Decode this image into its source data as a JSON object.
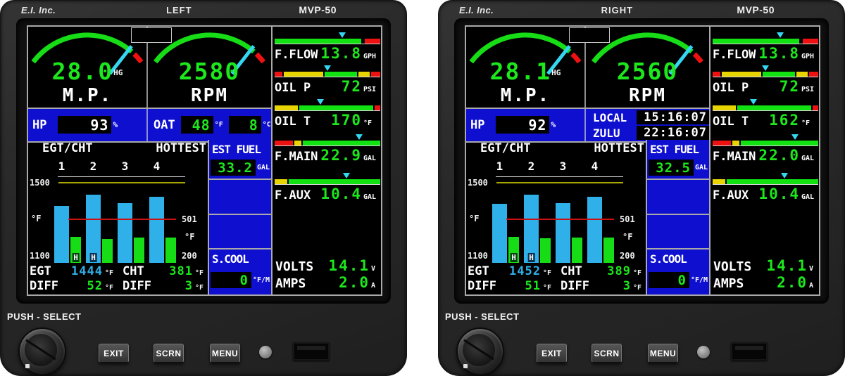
{
  "colors": {
    "green": "#1ce81c",
    "bar_green": "#12e112",
    "bar_yellow": "#e8d400",
    "bar_red": "#ee1111",
    "egt_blue": "#2fb0e8",
    "cht_green": "#16dd16",
    "pointer_cyan": "#35d6f2",
    "panel_blue": "#0f0fd0"
  },
  "units": [
    {
      "bezel": {
        "brand": "E.I. Inc.",
        "position": "LEFT",
        "model": "MVP-50"
      },
      "push_select": "PUSH - SELECT",
      "buttons": [
        "EXIT",
        "SCRN",
        "MENU"
      ],
      "gauges": {
        "mp": {
          "value": "28.0",
          "unit": "HG",
          "label": "M.P."
        },
        "rpm": {
          "value": "2580",
          "label": "RPM"
        }
      },
      "hp": {
        "label": "HP",
        "value": "93",
        "unit": "%"
      },
      "oat": {
        "label": "OAT",
        "f_value": "48",
        "f_unit": "°F",
        "c_value": "8",
        "c_unit": "°C"
      },
      "bars": {
        "f_flow": {
          "label": "F.FLOW",
          "value": "13.8",
          "unit": "GPH",
          "pointer": 64,
          "segments": [
            {
              "color": "#12e112",
              "from": 0,
              "to": 82
            },
            {
              "color": "#ee1111",
              "from": 85.5,
              "to": 100
            }
          ]
        },
        "oil_p": {
          "label": "OIL P",
          "value": "72",
          "unit": "PSI",
          "pointer": 50,
          "segments": [
            {
              "color": "#ee1111",
              "from": 0,
              "to": 7
            },
            {
              "color": "#e8d400",
              "from": 8.5,
              "to": 46
            },
            {
              "color": "#12e112",
              "from": 47.5,
              "to": 78
            },
            {
              "color": "#e8d400",
              "from": 79.5,
              "to": 90
            },
            {
              "color": "#ee1111",
              "from": 91.5,
              "to": 100
            }
          ]
        },
        "oil_t": {
          "label": "OIL T",
          "value": "170",
          "unit": "°F",
          "pointer": 43,
          "segments": [
            {
              "color": "#e8d400",
              "from": 0,
              "to": 22
            },
            {
              "color": "#12e112",
              "from": 23.5,
              "to": 93
            },
            {
              "color": "#ee1111",
              "from": 94.5,
              "to": 100
            }
          ]
        },
        "f_main": {
          "label": "F.MAIN",
          "value": "22.9",
          "unit": "GAL",
          "pointer": 80,
          "segments": [
            {
              "color": "#ee1111",
              "from": 0,
              "to": 17
            },
            {
              "color": "#e8d400",
              "from": 18.5,
              "to": 25
            },
            {
              "color": "#12e112",
              "from": 26.5,
              "to": 100
            }
          ]
        },
        "f_aux": {
          "label": "F.AUX",
          "value": "10.4",
          "unit": "GAL",
          "pointer": 68,
          "segments": [
            {
              "color": "#e8d400",
              "from": 0,
              "to": 12
            },
            {
              "color": "#12e112",
              "from": 13.5,
              "to": 100
            }
          ]
        }
      },
      "est_fuel": {
        "label": "EST FUEL",
        "value": "33.2",
        "unit": "GAL"
      },
      "s_cool": {
        "label": "S.COOL",
        "value": "0",
        "unit": "°F/M"
      },
      "volts": {
        "label": "VOLTS",
        "value": "14.1",
        "unit": "V"
      },
      "amps": {
        "label": "AMPS",
        "value": "2.0",
        "unit": "A"
      },
      "egt_cht": {
        "title": "EGT/CHT",
        "hottest_label": "HOTTEST",
        "cylinders": [
          "1",
          "2",
          "3",
          "4"
        ],
        "left_axis": {
          "top": "1500",
          "unit": "°F",
          "bottom": "1100"
        },
        "right_axis": {
          "redline": "501",
          "unit": "°F",
          "bottom": "200"
        },
        "egt_bars_pct": [
          72,
          86,
          75,
          83
        ],
        "cht_bars_pct": [
          33,
          30,
          32,
          32
        ],
        "egt_hottest_cyl": 2,
        "cht_hottest_cyl": 1,
        "hot_marker": "H",
        "redline_pct": 56,
        "readouts": {
          "egt_label": "EGT",
          "egt_value": "1444",
          "egt_unit": "°F",
          "cht_label": "CHT",
          "cht_value": "381",
          "cht_unit": "°F",
          "diff_label": "DIFF",
          "egt_diff": "52",
          "cht_diff": "3",
          "diff_unit": "°F"
        }
      }
    },
    {
      "bezel": {
        "brand": "E.I. Inc.",
        "position": "RIGHT",
        "model": "MVP-50"
      },
      "push_select": "PUSH - SELECT",
      "buttons": [
        "EXIT",
        "SCRN",
        "MENU"
      ],
      "gauges": {
        "mp": {
          "value": "28.1",
          "unit": "HG",
          "label": "M.P."
        },
        "rpm": {
          "value": "2560",
          "label": "RPM"
        }
      },
      "hp": {
        "label": "HP",
        "value": "92",
        "unit": "%"
      },
      "clock": {
        "local_label": "LOCAL",
        "local_value": "15:16:07",
        "zulu_label": "ZULU",
        "zulu_value": "22:16:07"
      },
      "bars": {
        "f_flow": {
          "label": "F.FLOW",
          "value": "13.8",
          "unit": "GPH",
          "pointer": 64,
          "segments": [
            {
              "color": "#12e112",
              "from": 0,
              "to": 82
            },
            {
              "color": "#ee1111",
              "from": 85.5,
              "to": 100
            }
          ]
        },
        "oil_p": {
          "label": "OIL P",
          "value": "72",
          "unit": "PSI",
          "pointer": 50,
          "segments": [
            {
              "color": "#ee1111",
              "from": 0,
              "to": 7
            },
            {
              "color": "#e8d400",
              "from": 8.5,
              "to": 46
            },
            {
              "color": "#12e112",
              "from": 47.5,
              "to": 78
            },
            {
              "color": "#e8d400",
              "from": 79.5,
              "to": 90
            },
            {
              "color": "#ee1111",
              "from": 91.5,
              "to": 100
            }
          ]
        },
        "oil_t": {
          "label": "OIL T",
          "value": "162",
          "unit": "°F",
          "pointer": 39,
          "segments": [
            {
              "color": "#e8d400",
              "from": 0,
              "to": 22
            },
            {
              "color": "#12e112",
              "from": 23.5,
              "to": 93
            },
            {
              "color": "#ee1111",
              "from": 94.5,
              "to": 100
            }
          ]
        },
        "f_main": {
          "label": "F.MAIN",
          "value": "22.0",
          "unit": "GAL",
          "pointer": 78,
          "segments": [
            {
              "color": "#ee1111",
              "from": 0,
              "to": 17
            },
            {
              "color": "#e8d400",
              "from": 18.5,
              "to": 25
            },
            {
              "color": "#12e112",
              "from": 26.5,
              "to": 100
            }
          ]
        },
        "f_aux": {
          "label": "F.AUX",
          "value": "10.4",
          "unit": "GAL",
          "pointer": 68,
          "segments": [
            {
              "color": "#e8d400",
              "from": 0,
              "to": 12
            },
            {
              "color": "#12e112",
              "from": 13.5,
              "to": 100
            }
          ]
        }
      },
      "est_fuel": {
        "label": "EST FUEL",
        "value": "32.5",
        "unit": "GAL"
      },
      "s_cool": {
        "label": "S.COOL",
        "value": "0",
        "unit": "°F/M"
      },
      "volts": {
        "label": "VOLTS",
        "value": "14.1",
        "unit": "V"
      },
      "amps": {
        "label": "AMPS",
        "value": "2.0",
        "unit": "A"
      },
      "egt_cht": {
        "title": "EGT/CHT",
        "hottest_label": "HOTTEST",
        "cylinders": [
          "1",
          "2",
          "3",
          "4"
        ],
        "left_axis": {
          "top": "1500",
          "unit": "°F",
          "bottom": "1100"
        },
        "right_axis": {
          "redline": "501",
          "unit": "°F",
          "bottom": "200"
        },
        "egt_bars_pct": [
          74,
          86,
          75,
          83
        ],
        "cht_bars_pct": [
          33,
          31,
          32,
          32
        ],
        "egt_hottest_cyl": 2,
        "cht_hottest_cyl": 1,
        "hot_marker": "H",
        "redline_pct": 56,
        "readouts": {
          "egt_label": "EGT",
          "egt_value": "1452",
          "egt_unit": "°F",
          "cht_label": "CHT",
          "cht_value": "389",
          "cht_unit": "°F",
          "diff_label": "DIFF",
          "egt_diff": "51",
          "cht_diff": "3",
          "diff_unit": "°F"
        }
      }
    }
  ]
}
